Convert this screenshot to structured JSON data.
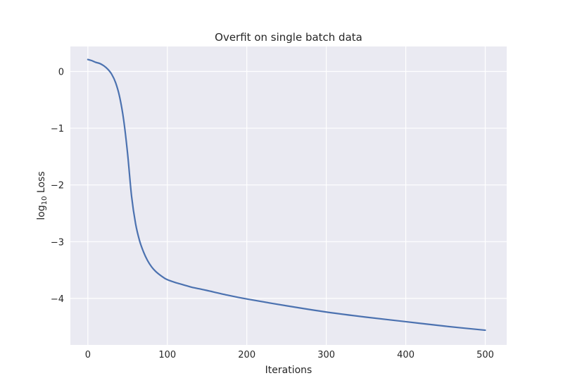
{
  "chart_data": {
    "type": "line",
    "title": "Overfit on single batch data",
    "xlabel": "Iterations",
    "ylabel_main": "log",
    "ylabel_sub": "10",
    "ylabel_tail": " Loss",
    "xlim": [
      -22,
      527
    ],
    "ylim": [
      -4.82,
      0.44
    ],
    "xticks": [
      0,
      100,
      200,
      300,
      400,
      500
    ],
    "yticks": [
      0,
      -1,
      -2,
      -3,
      -4
    ],
    "xtick_labels": [
      "0",
      "100",
      "200",
      "300",
      "400",
      "500"
    ],
    "ytick_labels": [
      "0",
      "−1",
      "−2",
      "−3",
      "−4"
    ],
    "grid": true,
    "series": [
      {
        "color": "#4c72b0",
        "x": [
          0,
          5,
          10,
          15,
          20,
          25,
          30,
          35,
          40,
          45,
          50,
          55,
          60,
          65,
          70,
          75,
          80,
          85,
          90,
          95,
          100,
          110,
          120,
          130,
          140,
          150,
          175,
          200,
          250,
          300,
          350,
          400,
          450,
          500
        ],
        "y": [
          0.21,
          0.19,
          0.16,
          0.14,
          0.1,
          0.04,
          -0.05,
          -0.2,
          -0.45,
          -0.85,
          -1.45,
          -2.2,
          -2.68,
          -2.98,
          -3.18,
          -3.33,
          -3.44,
          -3.52,
          -3.58,
          -3.63,
          -3.67,
          -3.72,
          -3.76,
          -3.8,
          -3.83,
          -3.86,
          -3.94,
          -4.01,
          -4.13,
          -4.24,
          -4.33,
          -4.41,
          -4.49,
          -4.56
        ]
      }
    ]
  }
}
